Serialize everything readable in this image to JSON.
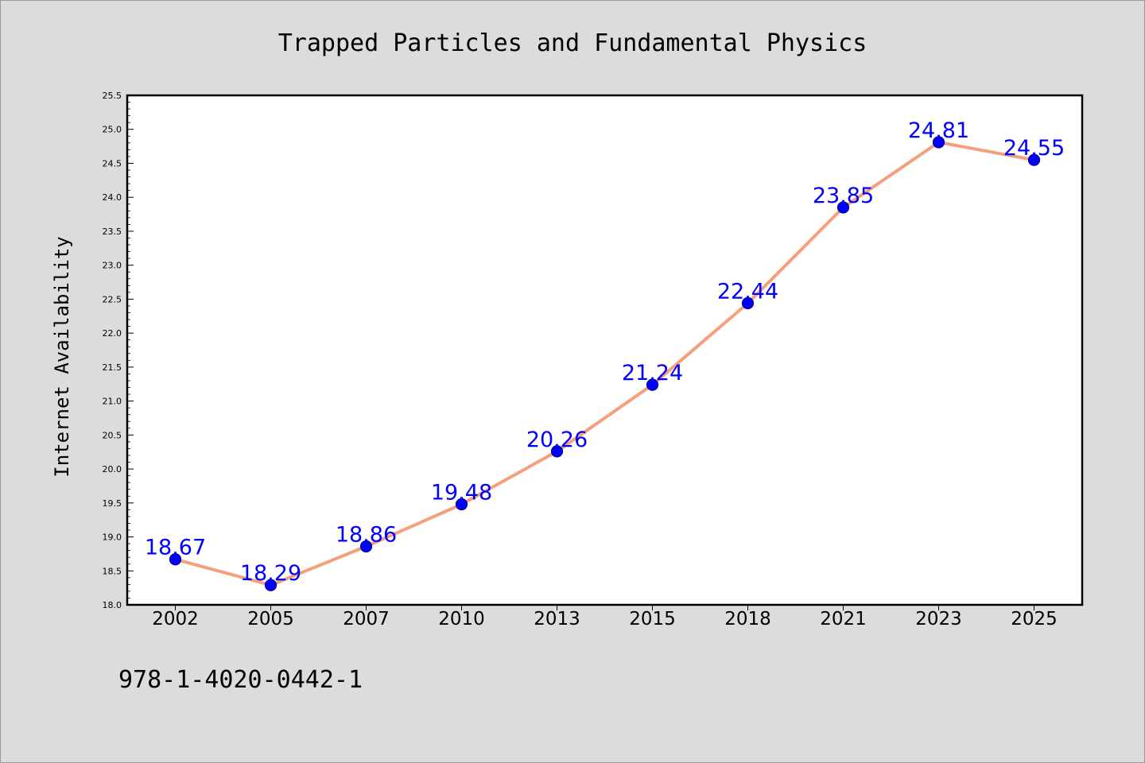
{
  "chart_data": {
    "type": "line",
    "title": "Trapped Particles and Fundamental Physics",
    "xlabel": "",
    "ylabel": "Internet Availability",
    "categories": [
      "2002",
      "2005",
      "2007",
      "2010",
      "2013",
      "2015",
      "2018",
      "2021",
      "2023",
      "2025"
    ],
    "series": [
      {
        "values": [
          18.67,
          18.29,
          18.86,
          19.48,
          20.26,
          21.24,
          22.44,
          23.85,
          24.81,
          24.55
        ],
        "data_labels": [
          "18.67",
          "18.29",
          "18.86",
          "19.48",
          "20.26",
          "21.24",
          "22.44",
          "23.85",
          "24.81",
          "24.55"
        ]
      }
    ],
    "ylim": [
      18.0,
      25.5
    ],
    "yticks": [
      "18.0",
      "18.5",
      "19.0",
      "19.5",
      "20.0",
      "20.5",
      "21.0",
      "21.5",
      "22.0",
      "22.5",
      "23.0",
      "23.5",
      "24.0",
      "24.5",
      "25.0",
      "25.5"
    ],
    "grid": false,
    "legend": "none"
  },
  "footer": {
    "isbn": "978-1-4020-0442-1"
  },
  "colors": {
    "figure_background": "#dcdcdc",
    "plot_background": "#ffffff",
    "line": "#f4a07c",
    "marker_fill": "#0000ff",
    "marker_edge": "#00008b",
    "data_label": "#0000ff",
    "text": "#000000"
  }
}
